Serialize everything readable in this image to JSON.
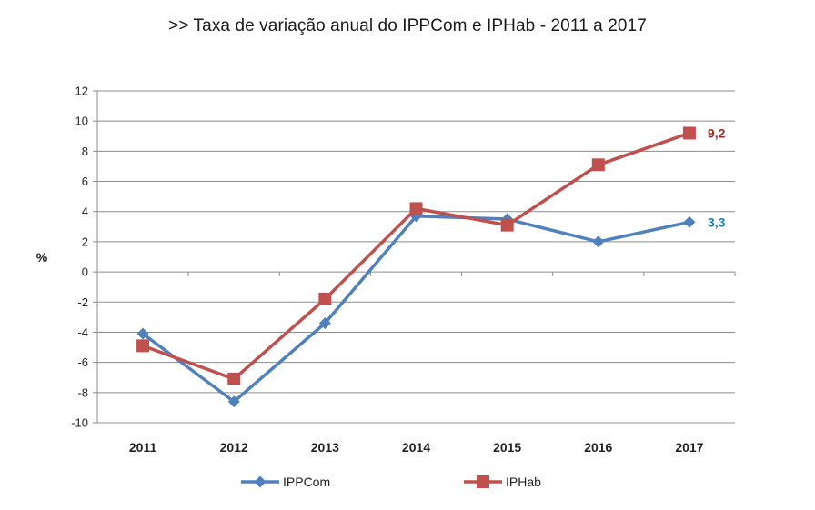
{
  "chart_data": {
    "type": "line",
    "title": ">>  Taxa de variação anual do IPPCom e IPHab - 2011 a 2017",
    "ylabel": "%",
    "xlabel": "",
    "categories": [
      "2011",
      "2012",
      "2013",
      "2014",
      "2015",
      "2016",
      "2017"
    ],
    "ylim": [
      -10,
      12
    ],
    "yticks": [
      12,
      10,
      8,
      6,
      4,
      2,
      0,
      -2,
      -4,
      -6,
      -8,
      -10
    ],
    "grid": true,
    "legend_position": "bottom",
    "series": [
      {
        "name": "IPPCom",
        "values": [
          -4.1,
          -8.6,
          -3.4,
          3.7,
          3.5,
          2.0,
          3.3
        ],
        "color": "#4f81bd",
        "marker": "diamond",
        "end_label": "3,3",
        "end_label_color": "#1f7ab5"
      },
      {
        "name": "IPHab",
        "values": [
          -4.9,
          -7.1,
          -1.8,
          4.2,
          3.1,
          7.1,
          9.2
        ],
        "color": "#c0504d",
        "marker": "square",
        "end_label": "9,2",
        "end_label_color": "#a02b2b"
      }
    ]
  }
}
